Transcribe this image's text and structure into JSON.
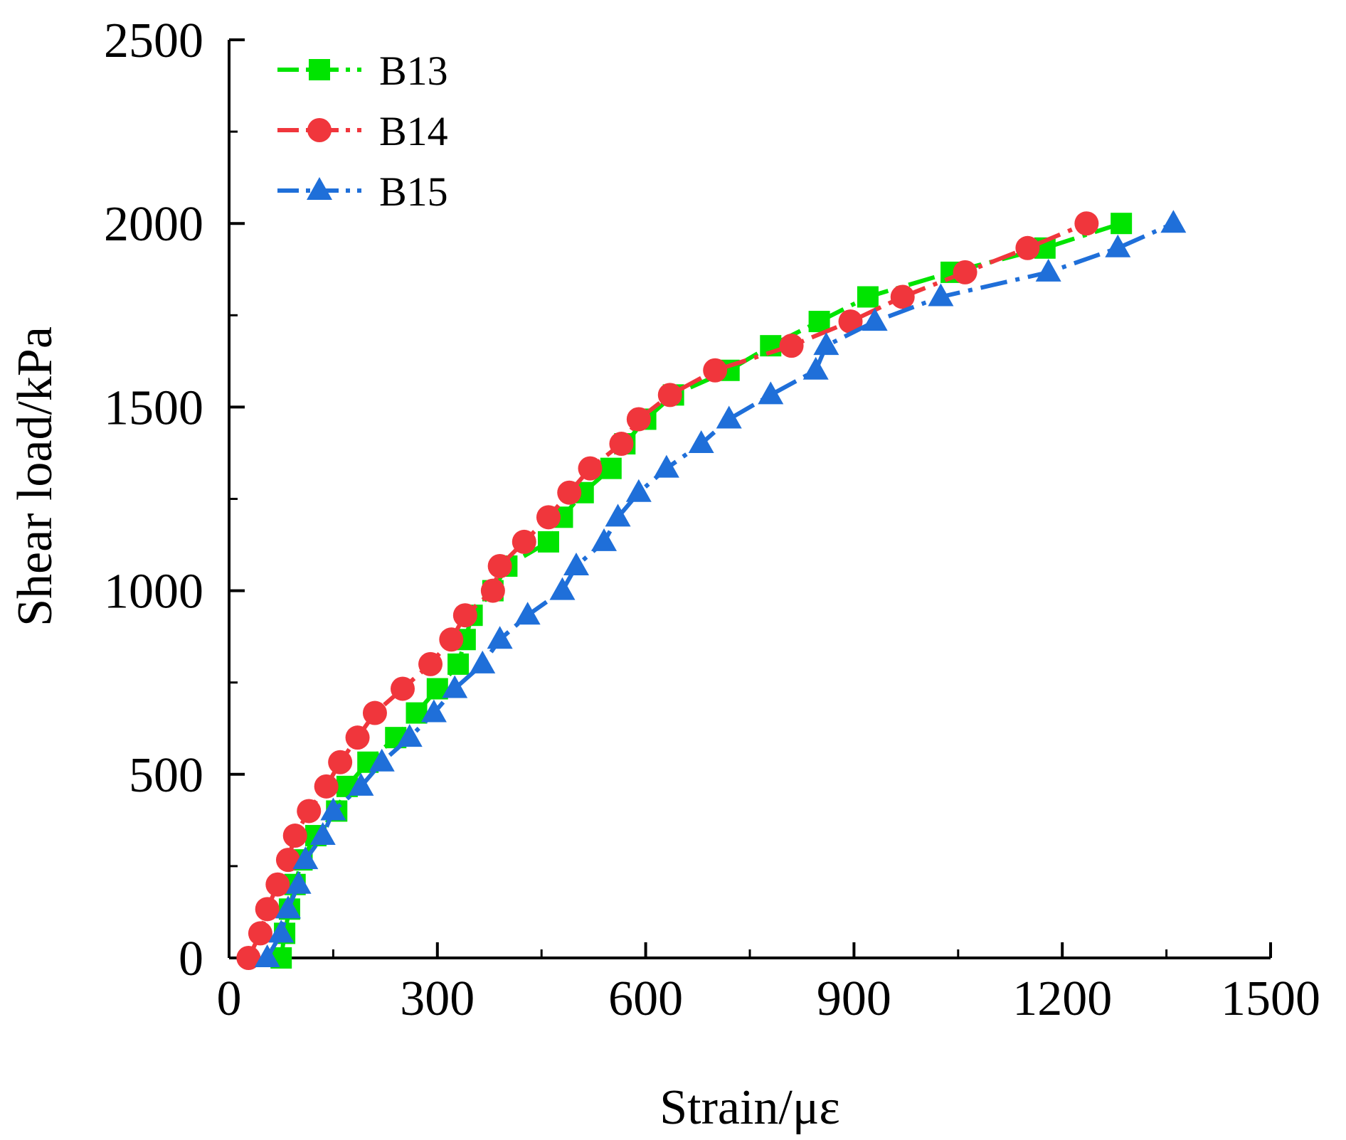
{
  "chart_data": {
    "type": "line",
    "title": "",
    "xlabel": "Strain/με",
    "ylabel": "Shear load/kPa",
    "xlim": [
      0,
      1500
    ],
    "ylim": [
      0,
      2500
    ],
    "xticks": [
      "0",
      "300",
      "600",
      "900",
      "1200",
      "1500"
    ],
    "yticks": [
      "0",
      "500",
      "1000",
      "1500",
      "2000",
      "2500"
    ],
    "legend_position": "top-left",
    "series": [
      {
        "name": "B13",
        "color": "#00e400",
        "marker": "square",
        "points": [
          [
            75,
            0
          ],
          [
            80,
            67
          ],
          [
            87,
            133
          ],
          [
            95,
            200
          ],
          [
            105,
            267
          ],
          [
            125,
            333
          ],
          [
            155,
            400
          ],
          [
            170,
            467
          ],
          [
            200,
            533
          ],
          [
            240,
            600
          ],
          [
            270,
            667
          ],
          [
            300,
            733
          ],
          [
            330,
            800
          ],
          [
            340,
            867
          ],
          [
            350,
            933
          ],
          [
            380,
            1000
          ],
          [
            400,
            1067
          ],
          [
            460,
            1133
          ],
          [
            480,
            1200
          ],
          [
            510,
            1267
          ],
          [
            550,
            1333
          ],
          [
            570,
            1400
          ],
          [
            600,
            1467
          ],
          [
            640,
            1533
          ],
          [
            720,
            1600
          ],
          [
            780,
            1667
          ],
          [
            850,
            1733
          ],
          [
            920,
            1800
          ],
          [
            1040,
            1867
          ],
          [
            1175,
            1933
          ],
          [
            1285,
            2000
          ]
        ]
      },
      {
        "name": "B14",
        "color": "#f0363c",
        "marker": "circle",
        "points": [
          [
            28,
            0
          ],
          [
            45,
            67
          ],
          [
            55,
            133
          ],
          [
            70,
            200
          ],
          [
            85,
            267
          ],
          [
            95,
            333
          ],
          [
            115,
            400
          ],
          [
            140,
            467
          ],
          [
            160,
            533
          ],
          [
            185,
            600
          ],
          [
            210,
            667
          ],
          [
            250,
            733
          ],
          [
            290,
            800
          ],
          [
            320,
            867
          ],
          [
            340,
            933
          ],
          [
            380,
            1000
          ],
          [
            390,
            1067
          ],
          [
            425,
            1133
          ],
          [
            460,
            1200
          ],
          [
            490,
            1267
          ],
          [
            520,
            1333
          ],
          [
            565,
            1400
          ],
          [
            590,
            1467
          ],
          [
            635,
            1533
          ],
          [
            700,
            1600
          ],
          [
            810,
            1667
          ],
          [
            895,
            1733
          ],
          [
            970,
            1800
          ],
          [
            1060,
            1867
          ],
          [
            1150,
            1933
          ],
          [
            1235,
            2000
          ]
        ]
      },
      {
        "name": "B15",
        "color": "#1f6fd9",
        "marker": "triangle",
        "points": [
          [
            55,
            0
          ],
          [
            75,
            67
          ],
          [
            85,
            133
          ],
          [
            100,
            200
          ],
          [
            110,
            267
          ],
          [
            135,
            333
          ],
          [
            150,
            400
          ],
          [
            190,
            467
          ],
          [
            220,
            533
          ],
          [
            260,
            600
          ],
          [
            295,
            667
          ],
          [
            325,
            733
          ],
          [
            365,
            800
          ],
          [
            390,
            867
          ],
          [
            430,
            933
          ],
          [
            480,
            1000
          ],
          [
            500,
            1067
          ],
          [
            540,
            1133
          ],
          [
            560,
            1200
          ],
          [
            590,
            1267
          ],
          [
            630,
            1333
          ],
          [
            680,
            1400
          ],
          [
            720,
            1467
          ],
          [
            780,
            1533
          ],
          [
            845,
            1600
          ],
          [
            860,
            1667
          ],
          [
            930,
            1733
          ],
          [
            1025,
            1800
          ],
          [
            1180,
            1867
          ],
          [
            1280,
            1933
          ],
          [
            1360,
            2000
          ]
        ]
      }
    ]
  }
}
